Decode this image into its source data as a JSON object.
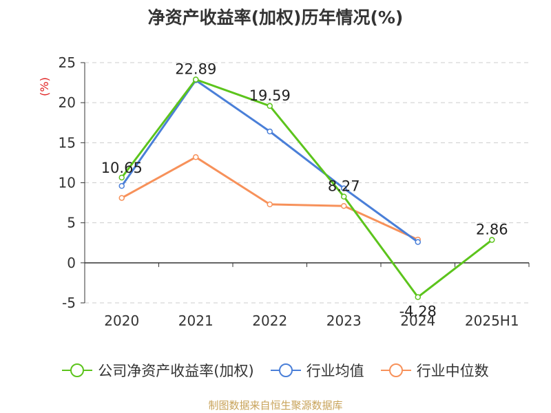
{
  "chart_data": {
    "type": "line",
    "title": "净资产收益率(加权)历年情况(%)",
    "ylabel": "(%)",
    "categories": [
      "2020",
      "2021",
      "2022",
      "2023",
      "2024",
      "2025H1"
    ],
    "ylim": [
      -5,
      25
    ],
    "yticks": [
      -5,
      0,
      5,
      10,
      15,
      20,
      25
    ],
    "grid": true,
    "legend_position": "bottom",
    "series": [
      {
        "name": "公司净资产收益率(加权)",
        "color": "#5cc41c",
        "values": [
          10.65,
          22.89,
          19.59,
          8.27,
          -4.28,
          2.86
        ],
        "labels": [
          "10.65",
          "22.89",
          "19.59",
          "8.27",
          "-4.28",
          "2.86"
        ]
      },
      {
        "name": "行业均值",
        "color": "#4a7fd8",
        "values": [
          9.6,
          22.8,
          16.4,
          9.3,
          2.6,
          null
        ]
      },
      {
        "name": "行业中位数",
        "color": "#f7915a",
        "values": [
          8.1,
          13.2,
          7.3,
          7.1,
          2.9,
          null
        ]
      }
    ]
  },
  "source": "制图数据来自恒生聚源数据库"
}
